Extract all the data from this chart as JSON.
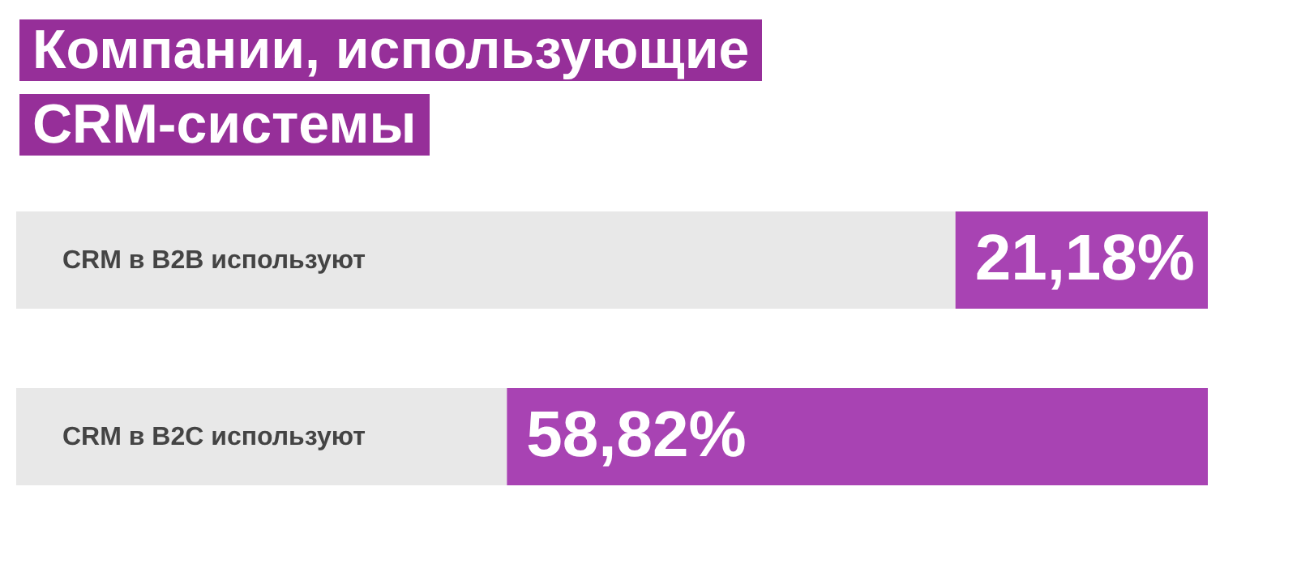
{
  "chart_data": {
    "type": "bar",
    "orientation": "horizontal",
    "stacked": true,
    "title": "Компании, использующие CRM-системы",
    "categories": [
      "CRM в B2B используют",
      "CRM в B2C используют"
    ],
    "series": [
      {
        "color": "#e8e8e8",
        "values": [
          78.82,
          41.18
        ]
      },
      {
        "color": "#a843b3",
        "values": [
          21.18,
          58.82
        ],
        "value_labels": [
          "21,18%",
          "58,82%"
        ]
      }
    ],
    "xlim": [
      0,
      100
    ],
    "tick_labels": "y",
    "legend": false
  }
}
